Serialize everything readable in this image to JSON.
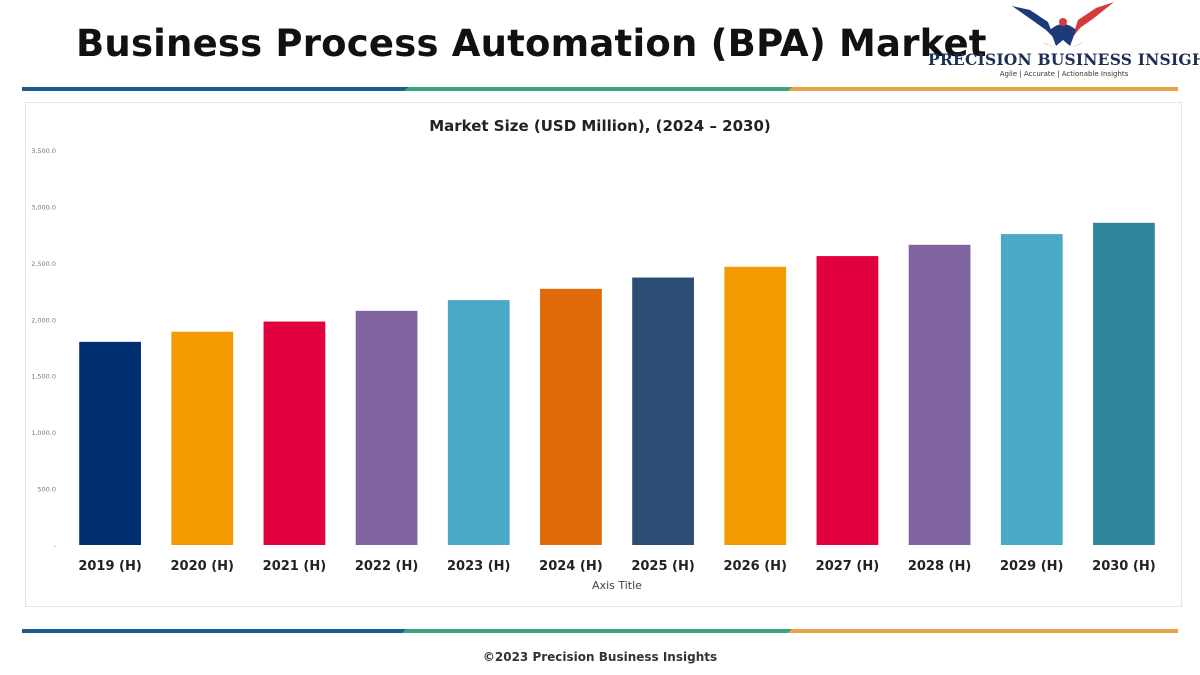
{
  "header": {
    "title": "Business Process Automation (BPA) Market"
  },
  "logo": {
    "name": "PRECISION BUSINESS INSIGHTS",
    "tagline": "Agile | Accurate | Actionable Insights",
    "colors": {
      "blue": "#1d3a7a",
      "red": "#d63a3a"
    }
  },
  "stripe_colors": [
    "#1e5a8a",
    "#3aa283",
    "#e8a24a"
  ],
  "chart_data": {
    "type": "bar",
    "title": "Market Size (USD Million), (2024 – 2030)",
    "xlabel": "Axis Title",
    "ylabel": "",
    "ylim": [
      0,
      3500
    ],
    "y_ticks": [
      0,
      500,
      1000,
      1500,
      2000,
      2500,
      3000,
      3500
    ],
    "y_tick_labels": [
      "-",
      "500.0",
      "1,000.0",
      "1,500.0",
      "2,000.0",
      "2,500.0",
      "3,000.0",
      "3,500.0"
    ],
    "grid": false,
    "legend": "none",
    "categories": [
      "2019 (H)",
      "2020 (H)",
      "2021 (H)",
      "2022 (H)",
      "2023 (H)",
      "2024 (H)",
      "2025 (H)",
      "2026 (H)",
      "2027 (H)",
      "2028 (H)",
      "2029 (H)",
      "2030 (H)"
    ],
    "values": [
      1800,
      1890,
      1980,
      2075,
      2170,
      2270,
      2370,
      2465,
      2560,
      2660,
      2755,
      2855
    ],
    "bar_colors": [
      "#003070",
      "#f29a00",
      "#e2003f",
      "#7f64a0",
      "#4aaac6",
      "#e06a0a",
      "#2c4d73",
      "#f29a00",
      "#e2003f",
      "#7f64a0",
      "#4aaac6",
      "#2f879e"
    ]
  },
  "footer": {
    "text": "©2023 Precision Business Insights"
  }
}
